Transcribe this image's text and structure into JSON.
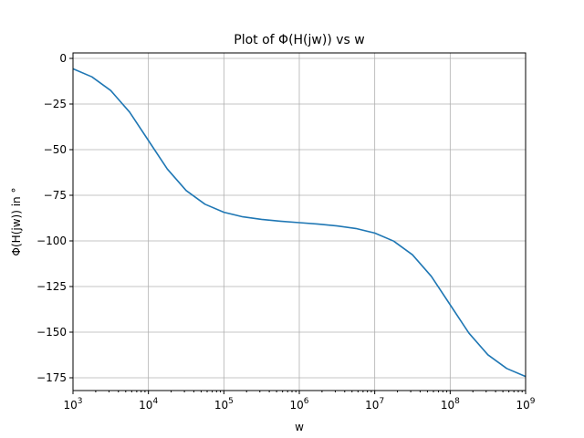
{
  "chart_data": {
    "type": "line",
    "title": "Plot of Φ(H(jw)) vs w",
    "xlabel": "w",
    "ylabel": "Φ(H(jw)) in °",
    "xscale": "log",
    "xlim": [
      1000,
      1000000000
    ],
    "ylim": [
      -182,
      3
    ],
    "grid": true,
    "x_ticks": [
      {
        "value": 1000,
        "base": "10",
        "exp": "3"
      },
      {
        "value": 10000,
        "base": "10",
        "exp": "4"
      },
      {
        "value": 100000,
        "base": "10",
        "exp": "5"
      },
      {
        "value": 1000000,
        "base": "10",
        "exp": "6"
      },
      {
        "value": 10000000,
        "base": "10",
        "exp": "7"
      },
      {
        "value": 100000000,
        "base": "10",
        "exp": "8"
      },
      {
        "value": 1000000000,
        "base": "10",
        "exp": "9"
      }
    ],
    "y_ticks": [
      {
        "value": 0,
        "label": "0"
      },
      {
        "value": -25,
        "label": "−25"
      },
      {
        "value": -50,
        "label": "−50"
      },
      {
        "value": -75,
        "label": "−75"
      },
      {
        "value": -100,
        "label": "−100"
      },
      {
        "value": -125,
        "label": "−125"
      },
      {
        "value": -150,
        "label": "−150"
      },
      {
        "value": -175,
        "label": "−175"
      }
    ],
    "series": [
      {
        "color": "#1f77b4",
        "x": [
          1000,
          1778,
          3162,
          5623,
          10000,
          17783,
          31623,
          56234,
          100000,
          177828,
          316228,
          562341,
          1000000,
          1778279,
          3162278,
          5623413,
          10000000,
          17782794,
          31622777,
          56234133,
          100000000,
          177827941,
          316227766,
          562341325,
          1000000000
        ],
        "y": [
          -5.7,
          -10.1,
          -17.6,
          -29.4,
          -45.0,
          -60.6,
          -72.4,
          -79.9,
          -84.3,
          -86.8,
          -88.2,
          -89.2,
          -90.0,
          -90.8,
          -91.8,
          -93.2,
          -95.7,
          -100.1,
          -107.6,
          -119.4,
          -135.0,
          -150.6,
          -162.4,
          -169.9,
          -174.3
        ]
      }
    ]
  }
}
